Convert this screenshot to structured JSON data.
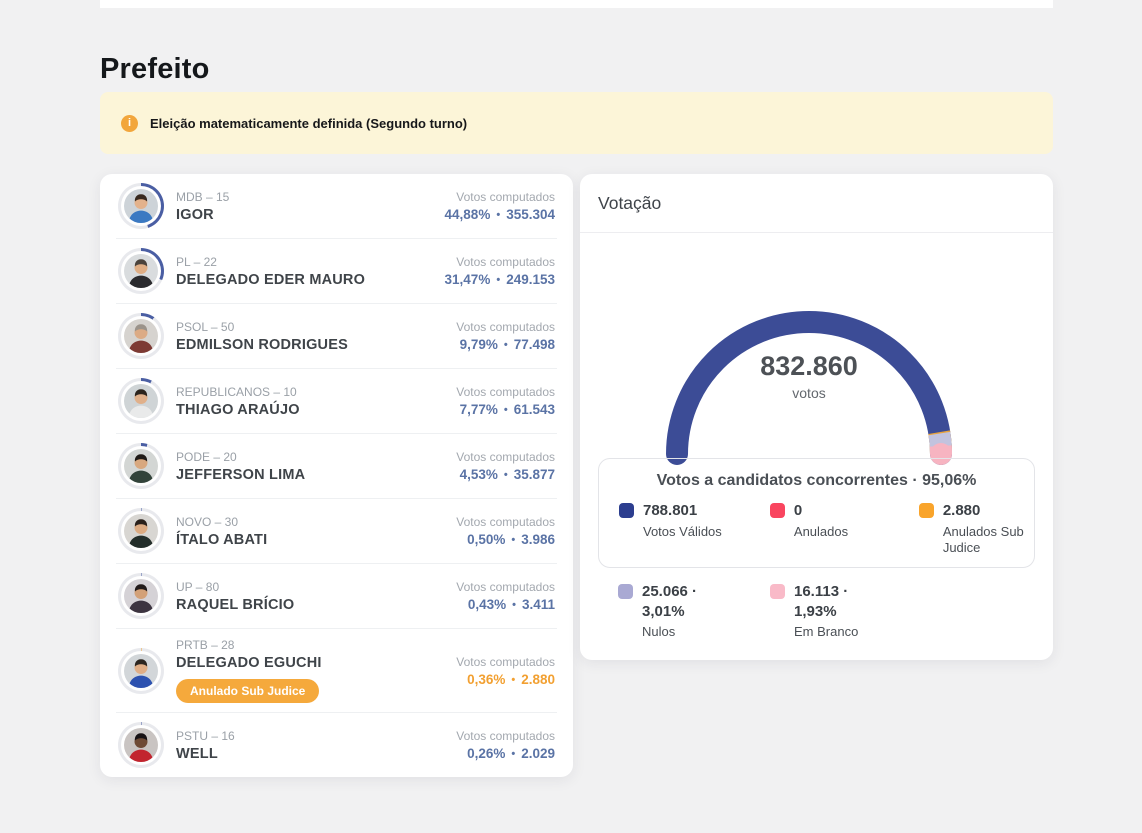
{
  "page": {
    "title": "Prefeito"
  },
  "banner": {
    "icon": "info-icon",
    "text": "Eleição matematicamente definida (Segundo turno)",
    "background": "#fcf5d8",
    "icon_color": "#f2a63c"
  },
  "candidates": {
    "votes_label": "Votos computados",
    "ring_default_color": "#4a5ea3",
    "ring_track_color": "#e8e9ed",
    "items": [
      {
        "party": "MDB – 15",
        "name": "IGOR",
        "percent": "44,88%",
        "votes": "355.304",
        "ring": 44.88,
        "avatar": {
          "bg": "#cdd3d8",
          "skin": "#e3b28c",
          "hair": "#38291f",
          "shirt": "#3b79c2"
        }
      },
      {
        "party": "PL – 22",
        "name": "DELEGADO EDER MAURO",
        "percent": "31,47%",
        "votes": "249.153",
        "ring": 31.47,
        "avatar": {
          "bg": "#d9dcde",
          "skin": "#dfae85",
          "hair": "#4a433c",
          "shirt": "#2b2b2e"
        }
      },
      {
        "party": "PSOL – 50",
        "name": "EDMILSON RODRIGUES",
        "percent": "9,79%",
        "votes": "77.498",
        "ring": 9.79,
        "avatar": {
          "bg": "#d6d3cf",
          "skin": "#dcab85",
          "hair": "#9b938a",
          "shirt": "#7d3a34"
        }
      },
      {
        "party": "REPUBLICANOS – 10",
        "name": "THIAGO ARAÚJO",
        "percent": "7,77%",
        "votes": "61.543",
        "ring": 7.77,
        "avatar": {
          "bg": "#cfd4d6",
          "skin": "#e0b08a",
          "hair": "#2c241d",
          "shirt": "#e9eaea"
        }
      },
      {
        "party": "PODE – 20",
        "name": "JEFFERSON LIMA",
        "percent": "4,53%",
        "votes": "35.877",
        "ring": 4.53,
        "avatar": {
          "bg": "#d3d6d4",
          "skin": "#d8a87f",
          "hair": "#1f1a16",
          "shirt": "#32433a"
        }
      },
      {
        "party": "NOVO – 30",
        "name": "ÍTALO ABATI",
        "percent": "0,50%",
        "votes": "3.986",
        "ring": 0.5,
        "avatar": {
          "bg": "#d8d6d2",
          "skin": "#dcab82",
          "hair": "#2a211b",
          "shirt": "#232e2a"
        }
      },
      {
        "party": "UP – 80",
        "name": "RAQUEL BRÍCIO",
        "percent": "0,43%",
        "votes": "3.411",
        "ring": 0.43,
        "avatar": {
          "bg": "#d5d2d6",
          "skin": "#d3a178",
          "hair": "#221b1a",
          "shirt": "#3c3440"
        }
      },
      {
        "party": "PRTB – 28",
        "name": "DELEGADO EGUCHI",
        "percent": "0,36%",
        "votes": "2.880",
        "ring": 0.36,
        "ring_color": "#f0a437",
        "highlight": true,
        "badge": "Anulado Sub Judice",
        "avatar": {
          "bg": "#d2d6d9",
          "skin": "#e0ae86",
          "hair": "#2c2620",
          "shirt": "#2d52b0"
        }
      },
      {
        "party": "PSTU – 16",
        "name": "WELL",
        "percent": "0,26%",
        "votes": "2.029",
        "ring": 0.26,
        "avatar": {
          "bg": "#c9c4c2",
          "skin": "#6e4a35",
          "hair": "#171113",
          "shirt": "#c2242e"
        }
      }
    ]
  },
  "votacao": {
    "title": "Votação",
    "gauge_total": "832.860",
    "gauge_unit": "votos",
    "summary": {
      "box_title": "Votos a candidatos concorrentes · 95,06%",
      "box_items": [
        {
          "value": "788.801",
          "label": "Votos Válidos",
          "swatch": "#2c3e8f"
        },
        {
          "value": "0",
          "label": "Anulados",
          "swatch": "#f9455f"
        },
        {
          "value": "2.880",
          "label": "Anulados Sub Judice",
          "swatch": "#f9a42b"
        }
      ],
      "outside_items": [
        {
          "value": "25.066 · 3,01%",
          "label": "Nulos",
          "swatch": "#a9a9d3"
        },
        {
          "value": "16.113 · 1,93%",
          "label": "Em Branco",
          "swatch": "#f9bac8"
        }
      ]
    }
  },
  "chart_data": {
    "type": "gauge",
    "title": "Votação",
    "center_label": "832.860",
    "center_unit": "votos",
    "total_votes": 832860,
    "note": "Votos a candidatos concorrentes · 95,06%",
    "segments": [
      {
        "label": "Votos Válidos",
        "value": 788801,
        "color": "#3c4c96"
      },
      {
        "label": "Anulados",
        "value": 0,
        "color": "#f9455f"
      },
      {
        "label": "Anulados Sub Judice",
        "value": 2880,
        "color": "#e8a33d"
      },
      {
        "label": "Nulos",
        "value": 25066,
        "percent_label": "3,01%",
        "color": "#c2c3de"
      },
      {
        "label": "Em Branco",
        "value": 16113,
        "percent_label": "1,93%",
        "color": "#f7b4c1"
      }
    ]
  }
}
